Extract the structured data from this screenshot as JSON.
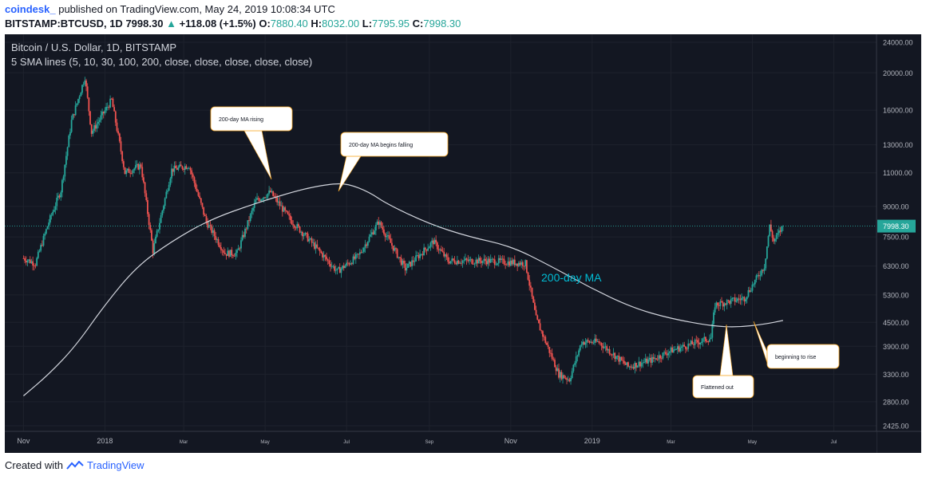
{
  "header": {
    "user": "coindesk_",
    "published": "published on TradingView.com, May 24, 2019 10:08:34 UTC",
    "symbol": "BITSTAMP:BTCUSD, 1D",
    "price": "7998.30",
    "change": "+118.08 (+1.5%)",
    "o_label": "O:",
    "o_value": "7880.40",
    "h_label": "H:",
    "h_value": "8032.00",
    "l_label": "L:",
    "l_value": "7795.95",
    "c_label": "C:",
    "c_value": "7998.30"
  },
  "footer": {
    "created_with": "Created with",
    "brand": "TradingView"
  },
  "colors": {
    "background": "#131722",
    "up": "#26a69a",
    "down": "#ef5350",
    "ma": "#d1d4dc",
    "label_ma": "#00bcd4",
    "price_tag": "#26a69a"
  },
  "chart_data": {
    "type": "candlestick",
    "title": "Bitcoin / U.S. Dollar, 1D, BITSTAMP",
    "subtitle": "5 SMA lines (5, 10, 30, 100, 200, close, close, close, close, close)",
    "y_scale": "log",
    "y_ticks": [
      "24000.00",
      "20000.00",
      "16000.00",
      "13000.00",
      "11000.00",
      "9000.00",
      "7500.00",
      "6300.00",
      "5300.00",
      "4500.00",
      "3900.00",
      "3300.00",
      "2800.00",
      "2425.00"
    ],
    "y_values": [
      24000,
      20000,
      16000,
      13000,
      11000,
      9000,
      7500,
      6300,
      5300,
      4500,
      3900,
      3300,
      2800,
      2425
    ],
    "x_ticks": [
      "Nov",
      "2018",
      "Mar",
      "May",
      "Jul",
      "Sep",
      "Nov",
      "2019",
      "Mar",
      "May",
      "Jul"
    ],
    "last_price": "7998.30",
    "price_path": [
      {
        "d": "2017-11-01",
        "v": 6600
      },
      {
        "d": "2017-11-10",
        "v": 6400
      },
      {
        "d": "2017-11-20",
        "v": 8200
      },
      {
        "d": "2017-11-29",
        "v": 9900
      },
      {
        "d": "2017-12-07",
        "v": 15000
      },
      {
        "d": "2017-12-17",
        "v": 19500
      },
      {
        "d": "2017-12-22",
        "v": 14000
      },
      {
        "d": "2018-01-06",
        "v": 17000
      },
      {
        "d": "2018-01-16",
        "v": 11000
      },
      {
        "d": "2018-01-28",
        "v": 11500
      },
      {
        "d": "2018-02-06",
        "v": 6900
      },
      {
        "d": "2018-02-20",
        "v": 11200
      },
      {
        "d": "2018-03-05",
        "v": 11500
      },
      {
        "d": "2018-03-18",
        "v": 8200
      },
      {
        "d": "2018-04-01",
        "v": 6800
      },
      {
        "d": "2018-04-10",
        "v": 6800
      },
      {
        "d": "2018-04-24",
        "v": 9300
      },
      {
        "d": "2018-05-05",
        "v": 9800
      },
      {
        "d": "2018-05-20",
        "v": 8300
      },
      {
        "d": "2018-06-01",
        "v": 7500
      },
      {
        "d": "2018-06-24",
        "v": 6100
      },
      {
        "d": "2018-07-10",
        "v": 6700
      },
      {
        "d": "2018-07-25",
        "v": 8200
      },
      {
        "d": "2018-08-14",
        "v": 6200
      },
      {
        "d": "2018-09-04",
        "v": 7300
      },
      {
        "d": "2018-09-15",
        "v": 6500
      },
      {
        "d": "2018-10-15",
        "v": 6500
      },
      {
        "d": "2018-11-12",
        "v": 6400
      },
      {
        "d": "2018-11-20",
        "v": 4600
      },
      {
        "d": "2018-12-07",
        "v": 3300
      },
      {
        "d": "2018-12-15",
        "v": 3200
      },
      {
        "d": "2018-12-24",
        "v": 4000
      },
      {
        "d": "2019-01-06",
        "v": 4000
      },
      {
        "d": "2019-01-28",
        "v": 3450
      },
      {
        "d": "2019-02-15",
        "v": 3600
      },
      {
        "d": "2019-03-01",
        "v": 3800
      },
      {
        "d": "2019-03-31",
        "v": 4100
      },
      {
        "d": "2019-04-03",
        "v": 5000
      },
      {
        "d": "2019-04-25",
        "v": 5200
      },
      {
        "d": "2019-05-10",
        "v": 6300
      },
      {
        "d": "2019-05-14",
        "v": 8000
      },
      {
        "d": "2019-05-17",
        "v": 7300
      },
      {
        "d": "2019-05-24",
        "v": 7998
      }
    ],
    "sma200": [
      {
        "d": "2017-11-01",
        "v": 2900
      },
      {
        "d": "2017-11-20",
        "v": 3300
      },
      {
        "d": "2017-12-10",
        "v": 3900
      },
      {
        "d": "2018-01-01",
        "v": 5000
      },
      {
        "d": "2018-01-25",
        "v": 6300
      },
      {
        "d": "2018-02-20",
        "v": 7300
      },
      {
        "d": "2018-03-20",
        "v": 8300
      },
      {
        "d": "2018-04-25",
        "v": 9200
      },
      {
        "d": "2018-05-30",
        "v": 10000
      },
      {
        "d": "2018-06-20",
        "v": 10300
      },
      {
        "d": "2018-07-02",
        "v": 10300
      },
      {
        "d": "2018-07-18",
        "v": 9800
      },
      {
        "d": "2018-08-01",
        "v": 9100
      },
      {
        "d": "2018-09-01",
        "v": 8100
      },
      {
        "d": "2018-10-01",
        "v": 7500
      },
      {
        "d": "2018-11-01",
        "v": 7100
      },
      {
        "d": "2018-12-01",
        "v": 6300
      },
      {
        "d": "2019-01-01",
        "v": 5500
      },
      {
        "d": "2019-02-01",
        "v": 4900
      },
      {
        "d": "2019-03-01",
        "v": 4600
      },
      {
        "d": "2019-04-01",
        "v": 4400
      },
      {
        "d": "2019-04-20",
        "v": 4370
      },
      {
        "d": "2019-05-10",
        "v": 4450
      },
      {
        "d": "2019-05-24",
        "v": 4550
      }
    ],
    "annotations": [
      {
        "id": "ma-rising",
        "text": "200-day MA rising"
      },
      {
        "id": "ma-falling",
        "text": "200-day MA begins falling"
      },
      {
        "id": "flattened",
        "text": "Flattened out"
      },
      {
        "id": "rise",
        "text": "beginning to rise"
      }
    ],
    "series_label": "200-day MA"
  }
}
